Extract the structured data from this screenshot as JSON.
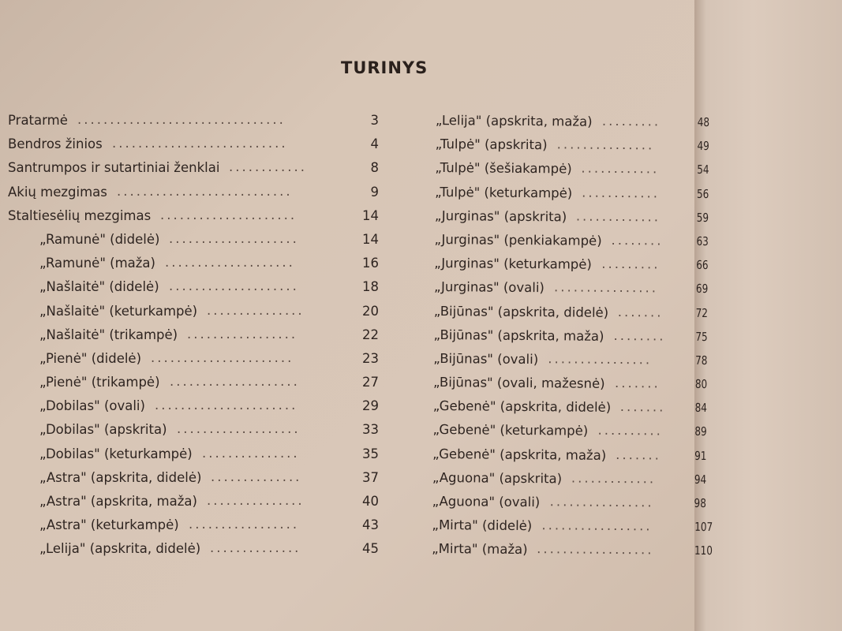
{
  "title": "TURINYS",
  "left": [
    {
      "label": "Pratarmė",
      "page": "3",
      "indent": false
    },
    {
      "label": "Bendros žinios",
      "page": "4",
      "indent": false
    },
    {
      "label": "Santrumpos ir sutartiniai ženklai",
      "page": "8",
      "indent": false
    },
    {
      "label": "Akių mezgimas",
      "page": "9",
      "indent": false
    },
    {
      "label": "Staltiesėlių mezgimas",
      "page": "14",
      "indent": false
    },
    {
      "label": "„Ramunė\" (didelė)",
      "page": "14",
      "indent": true
    },
    {
      "label": "„Ramunė\" (maža)",
      "page": "16",
      "indent": true
    },
    {
      "label": "„Našlaitė\" (didelė)",
      "page": "18",
      "indent": true
    },
    {
      "label": "„Našlaitė\" (keturkampė)",
      "page": "20",
      "indent": true
    },
    {
      "label": "„Našlaitė\" (trikampė)",
      "page": "22",
      "indent": true
    },
    {
      "label": "„Pienė\" (didelė)",
      "page": "23",
      "indent": true
    },
    {
      "label": "„Pienė\" (trikampė)",
      "page": "27",
      "indent": true
    },
    {
      "label": "„Dobilas\" (ovali)",
      "page": "29",
      "indent": true
    },
    {
      "label": "„Dobilas\" (apskrita)",
      "page": "33",
      "indent": true
    },
    {
      "label": "„Dobilas\" (keturkampė)",
      "page": "35",
      "indent": true
    },
    {
      "label": "„Astra\" (apskrita, didelė)",
      "page": "37",
      "indent": true
    },
    {
      "label": "„Astra\" (apskrita, maža)",
      "page": "40",
      "indent": true
    },
    {
      "label": "„Astra\" (keturkampė)",
      "page": "43",
      "indent": true
    },
    {
      "label": "„Lelija\" (apskrita, didelė)",
      "page": "45",
      "indent": true
    }
  ],
  "right": [
    {
      "label": "„Lelija\" (apskrita, maža)",
      "page": "48"
    },
    {
      "label": "„Tulpė\" (apskrita)",
      "page": "49"
    },
    {
      "label": "„Tulpė\" (šešiakampė)",
      "page": "54"
    },
    {
      "label": "„Tulpė\" (keturkampė)",
      "page": "56"
    },
    {
      "label": "„Jurginas\" (apskrita)",
      "page": "59"
    },
    {
      "label": "„Jurginas\" (penkiakampė)",
      "page": "63"
    },
    {
      "label": "„Jurginas\" (keturkampė)",
      "page": "66"
    },
    {
      "label": "„Jurginas\" (ovali)",
      "page": "69"
    },
    {
      "label": "„Bijūnas\" (apskrita, didelė)",
      "page": "72"
    },
    {
      "label": "„Bijūnas\" (apskrita, maža)",
      "page": "75"
    },
    {
      "label": "„Bijūnas\" (ovali)",
      "page": "78"
    },
    {
      "label": "„Bijūnas\" (ovali, mažesnė)",
      "page": "80"
    },
    {
      "label": "„Gebenė\" (apskrita, didelė)",
      "page": "84"
    },
    {
      "label": "„Gebenė\" (keturkampė)",
      "page": "89"
    },
    {
      "label": "„Gebenė\" (apskrita, maža)",
      "page": "91"
    },
    {
      "label": "„Aguona\" (apskrita)",
      "page": "94"
    },
    {
      "label": "„Aguona\" (ovali)",
      "page": "98"
    },
    {
      "label": "„Mirta\" (didelė)",
      "page": "107"
    },
    {
      "label": "„Mirta\" (maža)",
      "page": "110"
    }
  ]
}
